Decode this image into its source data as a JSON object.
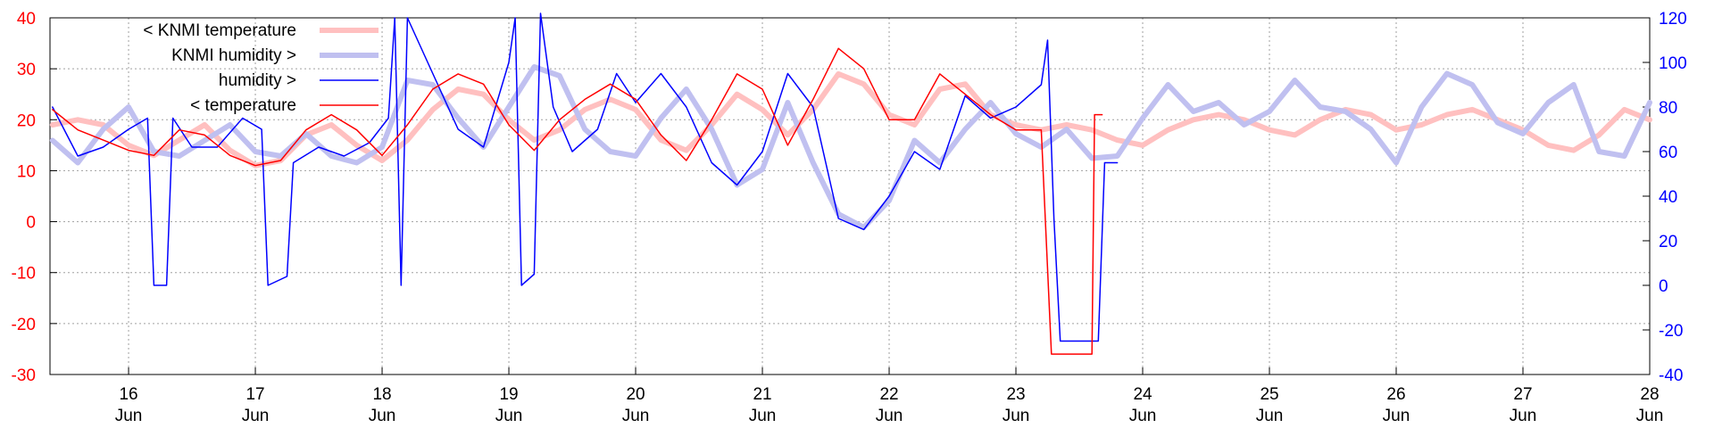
{
  "chart_data": {
    "type": "line",
    "title": "",
    "xlabel": "",
    "x_ticks": [
      {
        "day": 16,
        "top": "16",
        "bottom": "Jun"
      },
      {
        "day": 17,
        "top": "17",
        "bottom": "Jun"
      },
      {
        "day": 18,
        "top": "18",
        "bottom": "Jun"
      },
      {
        "day": 19,
        "top": "19",
        "bottom": "Jun"
      },
      {
        "day": 20,
        "top": "20",
        "bottom": "Jun"
      },
      {
        "day": 21,
        "top": "21",
        "bottom": "Jun"
      },
      {
        "day": 22,
        "top": "22",
        "bottom": "Jun"
      },
      {
        "day": 23,
        "top": "23",
        "bottom": "Jun"
      },
      {
        "day": 24,
        "top": "24",
        "bottom": "Jun"
      },
      {
        "day": 25,
        "top": "25",
        "bottom": "Jun"
      },
      {
        "day": 26,
        "top": "26",
        "bottom": "Jun"
      },
      {
        "day": 27,
        "top": "27",
        "bottom": "Jun"
      },
      {
        "day": 28,
        "top": "28",
        "bottom": "Jun"
      }
    ],
    "xlim": [
      15.38,
      28.0
    ],
    "y_left": {
      "lim": [
        -30,
        40
      ],
      "ticks": [
        -30,
        -20,
        -10,
        0,
        10,
        20,
        30,
        40
      ],
      "color": "#ff0000"
    },
    "y_right": {
      "lim": [
        -40,
        120
      ],
      "ticks": [
        -40,
        -20,
        0,
        20,
        40,
        60,
        80,
        100,
        120
      ],
      "color": "#0000ff"
    },
    "grid": true,
    "legend_position": "top-left",
    "series": [
      {
        "name": "< KNMI temperature",
        "axis": "left",
        "color": "#ffc0c0",
        "width": 6,
        "points": [
          [
            15.4,
            19
          ],
          [
            15.6,
            20
          ],
          [
            15.8,
            19
          ],
          [
            16.0,
            15
          ],
          [
            16.2,
            13
          ],
          [
            16.4,
            16
          ],
          [
            16.6,
            19
          ],
          [
            16.8,
            14
          ],
          [
            17.0,
            11
          ],
          [
            17.2,
            12
          ],
          [
            17.4,
            17
          ],
          [
            17.6,
            19
          ],
          [
            17.8,
            15
          ],
          [
            18.0,
            12
          ],
          [
            18.2,
            16
          ],
          [
            18.4,
            22
          ],
          [
            18.6,
            26
          ],
          [
            18.8,
            25
          ],
          [
            19.0,
            20
          ],
          [
            19.2,
            16
          ],
          [
            19.4,
            18
          ],
          [
            19.6,
            22
          ],
          [
            19.8,
            24
          ],
          [
            20.0,
            22
          ],
          [
            20.2,
            16
          ],
          [
            20.4,
            14
          ],
          [
            20.6,
            19
          ],
          [
            20.8,
            25
          ],
          [
            21.0,
            22
          ],
          [
            21.2,
            17
          ],
          [
            21.4,
            22
          ],
          [
            21.6,
            29
          ],
          [
            21.8,
            27
          ],
          [
            22.0,
            21
          ],
          [
            22.2,
            19
          ],
          [
            22.4,
            26
          ],
          [
            22.6,
            27
          ],
          [
            22.8,
            21
          ],
          [
            23.0,
            19
          ],
          [
            23.2,
            18
          ],
          [
            23.4,
            19
          ],
          [
            23.6,
            18
          ],
          [
            23.8,
            16
          ],
          [
            24.0,
            15
          ],
          [
            24.2,
            18
          ],
          [
            24.4,
            20
          ],
          [
            24.6,
            21
          ],
          [
            24.8,
            20
          ],
          [
            25.0,
            18
          ],
          [
            25.2,
            17
          ],
          [
            25.4,
            20
          ],
          [
            25.6,
            22
          ],
          [
            25.8,
            21
          ],
          [
            26.0,
            18
          ],
          [
            26.2,
            19
          ],
          [
            26.4,
            21
          ],
          [
            26.6,
            22
          ],
          [
            26.8,
            20
          ],
          [
            27.0,
            18
          ],
          [
            27.2,
            15
          ],
          [
            27.4,
            14
          ],
          [
            27.6,
            17
          ],
          [
            27.8,
            22
          ],
          [
            28.0,
            20
          ]
        ]
      },
      {
        "name": "KNMI humidity >",
        "axis": "right",
        "color": "#c0c0f0",
        "width": 6,
        "points": [
          [
            15.4,
            65
          ],
          [
            15.6,
            55
          ],
          [
            15.8,
            70
          ],
          [
            16.0,
            80
          ],
          [
            16.2,
            60
          ],
          [
            16.4,
            58
          ],
          [
            16.6,
            65
          ],
          [
            16.8,
            72
          ],
          [
            17.0,
            60
          ],
          [
            17.2,
            58
          ],
          [
            17.4,
            68
          ],
          [
            17.6,
            58
          ],
          [
            17.8,
            55
          ],
          [
            18.0,
            62
          ],
          [
            18.2,
            92
          ],
          [
            18.4,
            90
          ],
          [
            18.6,
            75
          ],
          [
            18.8,
            62
          ],
          [
            19.0,
            80
          ],
          [
            19.2,
            98
          ],
          [
            19.4,
            94
          ],
          [
            19.6,
            70
          ],
          [
            19.8,
            60
          ],
          [
            20.0,
            58
          ],
          [
            20.2,
            75
          ],
          [
            20.4,
            88
          ],
          [
            20.6,
            70
          ],
          [
            20.8,
            45
          ],
          [
            21.0,
            52
          ],
          [
            21.2,
            82
          ],
          [
            21.4,
            55
          ],
          [
            21.6,
            32
          ],
          [
            21.8,
            26
          ],
          [
            22.0,
            38
          ],
          [
            22.2,
            65
          ],
          [
            22.4,
            55
          ],
          [
            22.6,
            70
          ],
          [
            22.8,
            82
          ],
          [
            23.0,
            68
          ],
          [
            23.2,
            62
          ],
          [
            23.4,
            70
          ],
          [
            23.6,
            57
          ],
          [
            23.8,
            58
          ],
          [
            24.0,
            75
          ],
          [
            24.2,
            90
          ],
          [
            24.4,
            78
          ],
          [
            24.6,
            82
          ],
          [
            24.8,
            72
          ],
          [
            25.0,
            78
          ],
          [
            25.2,
            92
          ],
          [
            25.4,
            80
          ],
          [
            25.6,
            78
          ],
          [
            25.8,
            70
          ],
          [
            26.0,
            55
          ],
          [
            26.2,
            80
          ],
          [
            26.4,
            95
          ],
          [
            26.6,
            90
          ],
          [
            26.8,
            73
          ],
          [
            27.0,
            68
          ],
          [
            27.2,
            82
          ],
          [
            27.4,
            90
          ],
          [
            27.6,
            60
          ],
          [
            27.8,
            58
          ],
          [
            28.0,
            82
          ]
        ]
      },
      {
        "name": "humidity >",
        "axis": "right",
        "color": "#0000ff",
        "width": 1.5,
        "points": [
          [
            15.4,
            80
          ],
          [
            15.6,
            58
          ],
          [
            15.8,
            62
          ],
          [
            16.0,
            70
          ],
          [
            16.15,
            75
          ],
          [
            16.2,
            0
          ],
          [
            16.3,
            0
          ],
          [
            16.35,
            75
          ],
          [
            16.5,
            62
          ],
          [
            16.7,
            62
          ],
          [
            16.9,
            75
          ],
          [
            17.05,
            70
          ],
          [
            17.1,
            0
          ],
          [
            17.25,
            4
          ],
          [
            17.3,
            55
          ],
          [
            17.5,
            62
          ],
          [
            17.7,
            58
          ],
          [
            17.9,
            64
          ],
          [
            18.05,
            75
          ],
          [
            18.1,
            120
          ],
          [
            18.15,
            0
          ],
          [
            18.2,
            120
          ],
          [
            18.4,
            95
          ],
          [
            18.6,
            70
          ],
          [
            18.8,
            62
          ],
          [
            19.0,
            100
          ],
          [
            19.05,
            120
          ],
          [
            19.1,
            0
          ],
          [
            19.2,
            5
          ],
          [
            19.25,
            122
          ],
          [
            19.35,
            80
          ],
          [
            19.5,
            60
          ],
          [
            19.7,
            70
          ],
          [
            19.85,
            95
          ],
          [
            20.0,
            82
          ],
          [
            20.2,
            95
          ],
          [
            20.4,
            80
          ],
          [
            20.6,
            55
          ],
          [
            20.8,
            45
          ],
          [
            21.0,
            60
          ],
          [
            21.2,
            95
          ],
          [
            21.4,
            80
          ],
          [
            21.6,
            30
          ],
          [
            21.8,
            25
          ],
          [
            22.0,
            40
          ],
          [
            22.2,
            60
          ],
          [
            22.4,
            52
          ],
          [
            22.6,
            85
          ],
          [
            22.8,
            75
          ],
          [
            23.0,
            80
          ],
          [
            23.2,
            90
          ],
          [
            23.25,
            110
          ],
          [
            23.3,
            30
          ],
          [
            23.35,
            -25
          ],
          [
            23.65,
            -25
          ],
          [
            23.7,
            55
          ],
          [
            23.8,
            55
          ]
        ]
      },
      {
        "name": "< temperature",
        "axis": "left",
        "color": "#ff0000",
        "width": 1.5,
        "points": [
          [
            15.4,
            22
          ],
          [
            15.6,
            18
          ],
          [
            15.8,
            16
          ],
          [
            16.0,
            14
          ],
          [
            16.2,
            13
          ],
          [
            16.4,
            18
          ],
          [
            16.6,
            17
          ],
          [
            16.8,
            13
          ],
          [
            17.0,
            11
          ],
          [
            17.2,
            12
          ],
          [
            17.4,
            18
          ],
          [
            17.6,
            21
          ],
          [
            17.8,
            18
          ],
          [
            18.0,
            13
          ],
          [
            18.2,
            19
          ],
          [
            18.4,
            26
          ],
          [
            18.6,
            29
          ],
          [
            18.8,
            27
          ],
          [
            19.0,
            19
          ],
          [
            19.2,
            14
          ],
          [
            19.4,
            20
          ],
          [
            19.6,
            24
          ],
          [
            19.8,
            27
          ],
          [
            20.0,
            24
          ],
          [
            20.2,
            17
          ],
          [
            20.4,
            12
          ],
          [
            20.6,
            20
          ],
          [
            20.8,
            29
          ],
          [
            21.0,
            26
          ],
          [
            21.2,
            15
          ],
          [
            21.4,
            24
          ],
          [
            21.6,
            34
          ],
          [
            21.8,
            30
          ],
          [
            22.0,
            20
          ],
          [
            22.2,
            20
          ],
          [
            22.4,
            29
          ],
          [
            22.6,
            25
          ],
          [
            22.8,
            21
          ],
          [
            23.0,
            18
          ],
          [
            23.2,
            18
          ],
          [
            23.28,
            -26
          ],
          [
            23.6,
            -26
          ],
          [
            23.62,
            21
          ],
          [
            23.68,
            21
          ]
        ]
      }
    ]
  }
}
